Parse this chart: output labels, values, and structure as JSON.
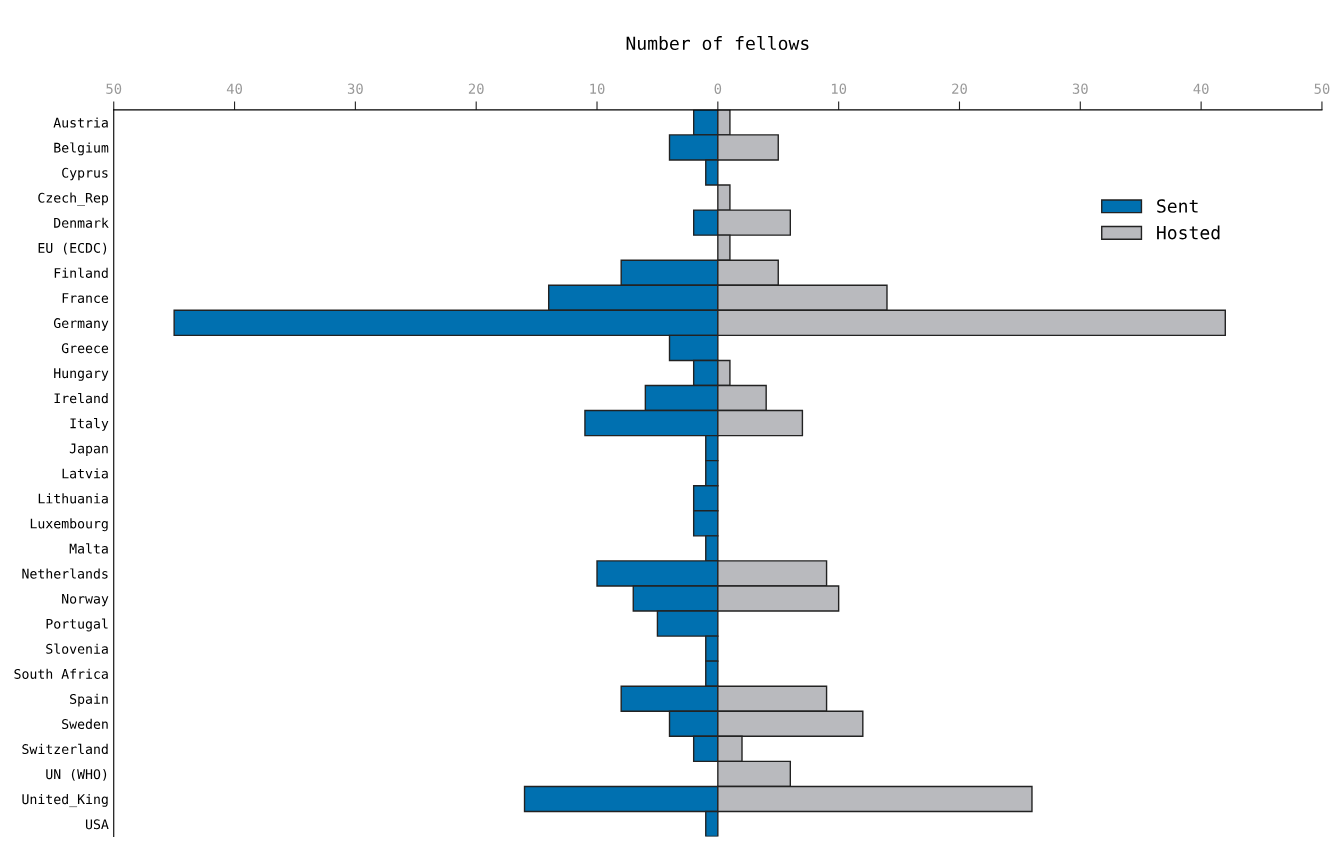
{
  "chart_data": {
    "type": "bar",
    "orientation": "horizontal",
    "stacked": true,
    "xlabel": "Number of fellows",
    "categories": [
      "Austria",
      "Belgium",
      "Cyprus",
      "Czech_Rep",
      "Denmark",
      "EU (ECDC)",
      "Finland",
      "France",
      "Germany",
      "Greece",
      "Hungary",
      "Ireland",
      "Italy",
      "Japan",
      "Latvia",
      "Lithuania",
      "Luxembourg",
      "Malta",
      "Netherlands",
      "Norway",
      "Portugal",
      "Slovenia",
      "South Africa",
      "Spain",
      "Sweden",
      "Switzerland",
      "UN (WHO)",
      "United_King",
      "USA"
    ],
    "series": [
      {
        "name": "Sent",
        "color": "#0070b0",
        "values": [
          -2,
          -4,
          -1,
          0,
          -2,
          0,
          -8,
          -14,
          -45,
          -4,
          -2,
          -6,
          -11,
          -1,
          -1,
          -2,
          -2,
          -1,
          -10,
          -7,
          -5,
          -1,
          -1,
          -8,
          -4,
          -2,
          0,
          -16,
          -1
        ]
      },
      {
        "name": "Hosted",
        "color": "#b9babe",
        "values": [
          1,
          5,
          0,
          1,
          6,
          1,
          5,
          14,
          42,
          0,
          1,
          4,
          7,
          0,
          0,
          0,
          0,
          0,
          9,
          10,
          0,
          0,
          0,
          9,
          12,
          2,
          6,
          26,
          0
        ]
      }
    ],
    "xlim": [
      -50,
      50
    ],
    "xticks": [
      {
        "value": -50,
        "label": "50"
      },
      {
        "value": -40,
        "label": "40"
      },
      {
        "value": -30,
        "label": "30"
      },
      {
        "value": -20,
        "label": "20"
      },
      {
        "value": -10,
        "label": "10"
      },
      0,
      10,
      20,
      30,
      40,
      50
    ],
    "legend": "top right",
    "grid": false
  }
}
